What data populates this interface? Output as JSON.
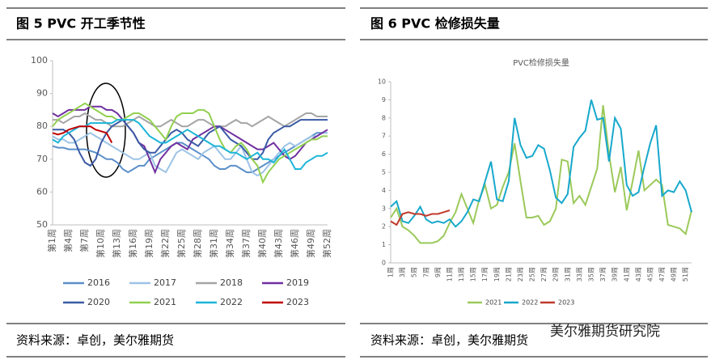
{
  "captions": [
    "图 5 PVC 开工季节性",
    "图 6 PVC 检修损失量"
  ],
  "sources": [
    "资料来源：卓创，美尔雅期货",
    "资料来源：卓创，美尔雅期货"
  ],
  "watermark": "美尔雅期货研究院",
  "chart_data": [
    {
      "type": "line",
      "categories": [
        "第1周",
        null,
        null,
        "第4周",
        null,
        null,
        "第7周",
        null,
        null,
        "第10周",
        null,
        null,
        "第13周",
        null,
        null,
        "第16周",
        null,
        null,
        "第19周",
        null,
        null,
        "第22周",
        null,
        null,
        "第25周",
        null,
        null,
        "第28周",
        null,
        null,
        "第31周",
        null,
        null,
        "第34周",
        null,
        null,
        "第37周",
        null,
        null,
        "第40周",
        null,
        null,
        "第43周",
        null,
        null,
        "第46周",
        null,
        null,
        "第49周",
        null,
        null,
        "第52周"
      ],
      "ylim": [
        50,
        100
      ],
      "yticks": [
        50,
        60,
        70,
        80,
        90,
        100
      ],
      "series": [
        {
          "name": "2016",
          "color": "#5b8fc9",
          "values": [
            74,
            73.5,
            73.5,
            73,
            73,
            73,
            73,
            72.5,
            72,
            71,
            70,
            70,
            69,
            67,
            66,
            67,
            68,
            68,
            70,
            71,
            72,
            73,
            74,
            75,
            75,
            74,
            73,
            72,
            71,
            70,
            68,
            67,
            67,
            68,
            68,
            67,
            66,
            66,
            67,
            68,
            69,
            70,
            71,
            72,
            73,
            74,
            75,
            76,
            77,
            78,
            78,
            78
          ]
        },
        {
          "name": "2017",
          "color": "#9dc3e6",
          "values": [
            77,
            76,
            76,
            75,
            75,
            76,
            77,
            78,
            77,
            76,
            75,
            74,
            73,
            72,
            71,
            70,
            70,
            71,
            72,
            68,
            67,
            66,
            69,
            72,
            73,
            72,
            71,
            70,
            72,
            73,
            74,
            72,
            70,
            70,
            72,
            74,
            70,
            66,
            65,
            66,
            68,
            70,
            72,
            74,
            75,
            74,
            75,
            76,
            77,
            77,
            78,
            78
          ]
        },
        {
          "name": "2018",
          "color": "#a5a5a5",
          "values": [
            82,
            82,
            81,
            82,
            83,
            83,
            84,
            83,
            82,
            82,
            81,
            80,
            80,
            80,
            81,
            82,
            83,
            82,
            81,
            80,
            80,
            81,
            82,
            81,
            80,
            80,
            81,
            82,
            82,
            81,
            80,
            80,
            80,
            81,
            82,
            81,
            81,
            80,
            81,
            82,
            83,
            82,
            81,
            80,
            81,
            82,
            83,
            84,
            84,
            83,
            83,
            83
          ]
        },
        {
          "name": "2019",
          "color": "#7030a0",
          "values": [
            84,
            83,
            84,
            85,
            85,
            85,
            85,
            86,
            86,
            86,
            85,
            85,
            84,
            82,
            80,
            78,
            75,
            74,
            70,
            66,
            70,
            72,
            74,
            75,
            74,
            73,
            76,
            77,
            78,
            79,
            80,
            80,
            79,
            78,
            77,
            76,
            75,
            74,
            73,
            73,
            74,
            75,
            73,
            71,
            70,
            71,
            73,
            75,
            76,
            77,
            78,
            79
          ]
        },
        {
          "name": "2020",
          "color": "#3b5ba5",
          "values": [
            79,
            79,
            79,
            78,
            76,
            72,
            69,
            68,
            70,
            75,
            78,
            80,
            81,
            82,
            80,
            78,
            75,
            73,
            72,
            72,
            74,
            76,
            78,
            79,
            78,
            76,
            75,
            74,
            76,
            78,
            79,
            80,
            78,
            76,
            75,
            74,
            72,
            70,
            70,
            72,
            76,
            78,
            79,
            80,
            80,
            81,
            82,
            82,
            82,
            82,
            82,
            82
          ]
        },
        {
          "name": "2021",
          "color": "#92d050",
          "values": [
            80,
            82,
            83,
            84,
            85,
            86,
            87,
            86,
            85,
            84,
            83,
            83,
            82,
            82,
            83,
            84,
            84,
            83,
            82,
            80,
            78,
            76,
            80,
            83,
            84,
            84,
            84,
            85,
            85,
            84,
            80,
            76,
            73,
            72,
            74,
            75,
            73,
            70,
            68,
            63,
            66,
            68,
            70,
            71,
            72,
            73,
            74,
            75,
            76,
            76,
            77,
            77
          ]
        },
        {
          "name": "2022",
          "color": "#1cb5d8",
          "values": [
            76,
            75,
            77,
            78,
            79,
            80,
            80,
            81,
            81,
            81,
            81,
            81,
            82,
            82,
            82,
            82,
            81,
            79,
            77,
            76,
            75,
            75,
            76,
            77,
            78,
            79,
            78,
            77,
            76,
            75,
            74,
            74,
            73,
            72,
            72,
            71,
            70,
            71,
            72,
            70,
            70,
            69,
            71,
            73,
            70,
            67,
            67,
            69,
            70,
            71,
            71,
            72
          ]
        },
        {
          "name": "2023",
          "color": "#c00000",
          "values": [
            78,
            77.5,
            78,
            79,
            79.5,
            80,
            80,
            80,
            79,
            78.5,
            78,
            75,
            null,
            null,
            null,
            null,
            null,
            null,
            null,
            null,
            null,
            null,
            null,
            null,
            null,
            null,
            null,
            null,
            null,
            null,
            null,
            null,
            null,
            null,
            null,
            null,
            null,
            null,
            null,
            null,
            null,
            null,
            null,
            null,
            null,
            null,
            null,
            null,
            null,
            null,
            null,
            null
          ]
        }
      ]
    },
    {
      "type": "line",
      "title": "PVC检修损失量",
      "categories": [
        "1周",
        null,
        "3周",
        null,
        "5周",
        null,
        "7周",
        null,
        "9周",
        null,
        "11周",
        null,
        "13周",
        null,
        "15周",
        null,
        "17周",
        null,
        "19周",
        null,
        "21周",
        null,
        "23周",
        null,
        "25周",
        null,
        "27周",
        null,
        "29周",
        null,
        "31周",
        null,
        "33周",
        null,
        "35周",
        null,
        "37周",
        null,
        "39周",
        null,
        "41周",
        null,
        "43周",
        null,
        "45周",
        null,
        "47周",
        null,
        "49周",
        null,
        "51周",
        null
      ],
      "ylim": [
        0,
        10
      ],
      "yticks": [
        0,
        1,
        2,
        3,
        4,
        5,
        6,
        7,
        8,
        9,
        10
      ],
      "series": [
        {
          "name": "2021",
          "color": "#9bc95a",
          "values": [
            2.5,
            3,
            2,
            1.8,
            1.5,
            1.1,
            1.1,
            1.1,
            1.2,
            1.5,
            2.2,
            2.8,
            3.8,
            3,
            2.2,
            3.5,
            4.3,
            3,
            3.2,
            4.2,
            5,
            6.6,
            4.5,
            2.5,
            2.5,
            2.6,
            2.1,
            2.3,
            3,
            5.7,
            5.6,
            3.3,
            3.7,
            3.2,
            4.2,
            5.2,
            8.7,
            6,
            3.9,
            5.3,
            2.9,
            4.5,
            6.2,
            4,
            4.3,
            4.6,
            4.3,
            2.1,
            2,
            1.9,
            1.6,
            2.9
          ]
        },
        {
          "name": "2022",
          "color": "#17a8cc",
          "values": [
            3.1,
            3.4,
            2.3,
            2.2,
            2.6,
            3.1,
            2.4,
            2.2,
            2.3,
            2.2,
            2.4,
            2,
            2.3,
            2.8,
            3.5,
            3.4,
            4.5,
            5.6,
            3.5,
            3.4,
            4.5,
            8,
            6.5,
            5.8,
            5.9,
            6.5,
            6.3,
            5.1,
            3.6,
            3.3,
            3.8,
            6.4,
            6.9,
            7.3,
            9,
            7.9,
            8,
            5.6,
            8,
            7.4,
            4.3,
            3.7,
            3.9,
            5.3,
            6.6,
            7.6,
            3.7,
            4,
            3.9,
            4.5,
            4,
            2.8
          ]
        },
        {
          "name": "2023",
          "color": "#c0392b",
          "values": [
            2.3,
            2.1,
            2.7,
            2.8,
            2.7,
            2.7,
            2.6,
            2.7,
            2.7,
            2.8,
            2.9,
            null,
            null,
            null,
            null,
            null,
            null,
            null,
            null,
            null,
            null,
            null,
            null,
            null,
            null,
            null,
            null,
            null,
            null,
            null,
            null,
            null,
            null,
            null,
            null,
            null,
            null,
            null,
            null,
            null,
            null,
            null,
            null,
            null,
            null,
            null,
            null,
            null,
            null,
            null,
            null,
            null
          ]
        }
      ]
    }
  ]
}
